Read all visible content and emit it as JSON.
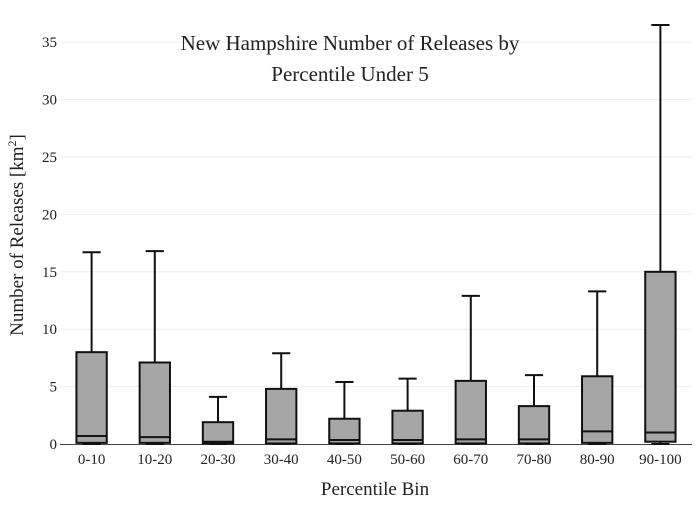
{
  "chart_data": {
    "type": "box",
    "title_lines": [
      "New Hampshire Number of Releases by",
      "Percentile Under 5"
    ],
    "xlabel": "Percentile Bin",
    "ylabel_text": "Number of Releases  [km",
    "ylabel_superscript": "2",
    "ylabel_suffix": "]",
    "y_ticks": [
      "0",
      "5",
      "10",
      "15",
      "20",
      "25",
      "30",
      "35"
    ],
    "ylim": [
      0,
      36.5
    ],
    "grid": true,
    "categories": [
      "0-10",
      "10-20",
      "20-30",
      "30-40",
      "40-50",
      "50-60",
      "60-70",
      "70-80",
      "80-90",
      "90-100"
    ],
    "boxes": [
      {
        "category": "0-10",
        "whisker_low": 0,
        "q1": 0.1,
        "median": 0.7,
        "q3": 8.0,
        "whisker_high": 16.7
      },
      {
        "category": "10-20",
        "whisker_low": 0,
        "q1": 0.1,
        "median": 0.6,
        "q3": 7.1,
        "whisker_high": 16.8
      },
      {
        "category": "20-30",
        "whisker_low": 0,
        "q1": 0.05,
        "median": 0.2,
        "q3": 1.9,
        "whisker_high": 4.1
      },
      {
        "category": "30-40",
        "whisker_low": 0,
        "q1": 0.05,
        "median": 0.4,
        "q3": 4.8,
        "whisker_high": 7.9
      },
      {
        "category": "40-50",
        "whisker_low": 0,
        "q1": 0.05,
        "median": 0.35,
        "q3": 2.2,
        "whisker_high": 5.4
      },
      {
        "category": "50-60",
        "whisker_low": 0,
        "q1": 0.05,
        "median": 0.35,
        "q3": 2.9,
        "whisker_high": 5.7
      },
      {
        "category": "60-70",
        "whisker_low": 0,
        "q1": 0.05,
        "median": 0.4,
        "q3": 5.5,
        "whisker_high": 12.9
      },
      {
        "category": "70-80",
        "whisker_low": 0,
        "q1": 0.05,
        "median": 0.4,
        "q3": 3.3,
        "whisker_high": 6.0
      },
      {
        "category": "80-90",
        "whisker_low": 0,
        "q1": 0.1,
        "median": 1.1,
        "q3": 5.9,
        "whisker_high": 13.3
      },
      {
        "category": "90-100",
        "whisker_low": 0,
        "q1": 0.2,
        "median": 1.0,
        "q3": 15.0,
        "whisker_high": 36.5
      }
    ],
    "box_color": "#a6a6a6",
    "line_color": "#111111",
    "grid_color": "#eeeeee"
  }
}
